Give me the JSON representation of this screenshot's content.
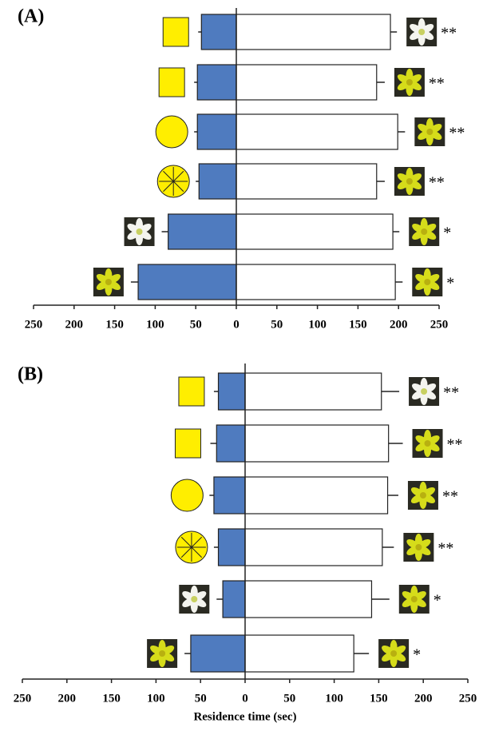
{
  "chart_data": [
    {
      "type": "bar",
      "orientation": "horizontal",
      "title": "(A)",
      "categories": [
        null,
        null,
        null,
        null,
        null,
        null
      ],
      "series": [
        {
          "color": "#4f7bbf",
          "values": [
            -43,
            -48,
            -48,
            -46,
            -84,
            -121
          ],
          "errors": [
            4,
            4,
            4,
            4,
            8,
            9
          ]
        },
        {
          "color": "#ffffff",
          "values": [
            190,
            173,
            199,
            173,
            193,
            196
          ],
          "errors": [
            8,
            10,
            9,
            10,
            8,
            9
          ]
        }
      ],
      "annotations": [
        "**",
        "**",
        "**",
        "**",
        "*",
        "*"
      ],
      "xlim": [
        -250,
        250
      ],
      "xticks": [
        {
          "value": -250,
          "label": "250"
        },
        {
          "value": -200,
          "label": "200"
        },
        {
          "value": -150,
          "label": "150"
        },
        {
          "value": -100,
          "label": "100"
        },
        {
          "value": -50,
          "label": "50"
        },
        0,
        50,
        100,
        150,
        200,
        250
      ]
    },
    {
      "type": "bar",
      "orientation": "horizontal",
      "title": "(B)",
      "xlabel": "Residence time (sec)",
      "categories": [
        null,
        null,
        null,
        null,
        null,
        null
      ],
      "series": [
        {
          "color": "#4f7bbf",
          "values": [
            -30,
            -32,
            -35,
            -30,
            -25,
            -61
          ],
          "errors": [
            5,
            7,
            5,
            5,
            7,
            7
          ]
        },
        {
          "color": "#ffffff",
          "values": [
            153,
            161,
            160,
            154,
            142,
            122
          ],
          "errors": [
            20,
            16,
            12,
            13,
            20,
            17
          ]
        }
      ],
      "annotations": [
        "**",
        "**",
        "**",
        "**",
        "*",
        "*"
      ],
      "xlim": [
        -250,
        250
      ],
      "xticks": [
        {
          "value": -250,
          "label": "250"
        },
        {
          "value": -200,
          "label": "200"
        },
        {
          "value": -150,
          "label": "150"
        },
        {
          "value": -100,
          "label": "100"
        },
        {
          "value": -50,
          "label": "50"
        },
        0,
        50,
        100,
        150,
        200,
        250
      ]
    }
  ]
}
